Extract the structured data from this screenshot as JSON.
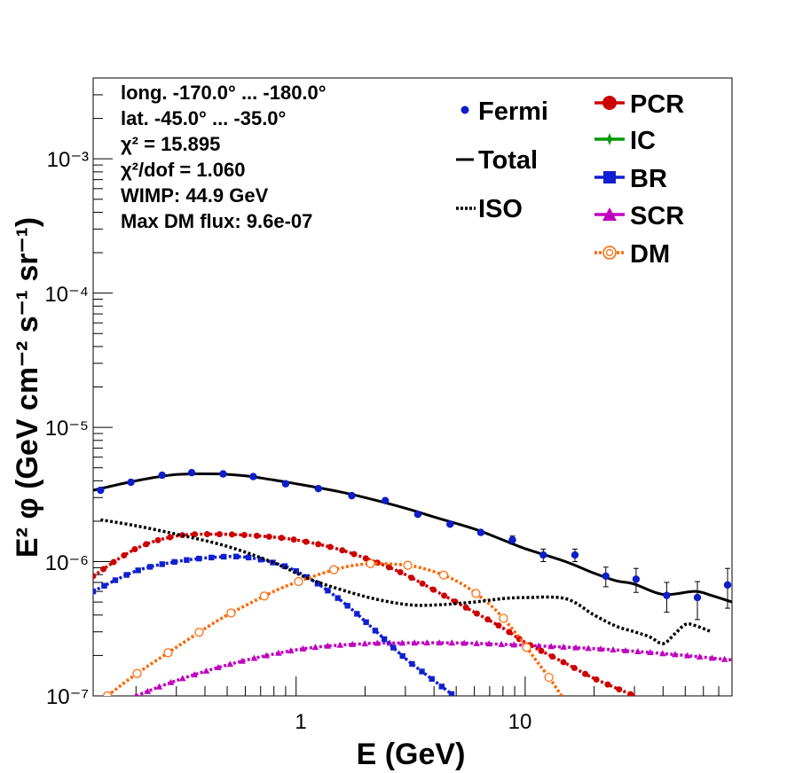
{
  "chart_data": {
    "type": "line",
    "xlabel": "E (GeV)",
    "ylabel": "E² φ (GeV cm⁻² s⁻¹ sr⁻¹)",
    "xscale": "log",
    "yscale": "log",
    "xlim": [
      0.13,
      80
    ],
    "ylim": [
      1e-07,
      0.004
    ],
    "x_tick_labels": [
      "1",
      "10"
    ],
    "y_tick_labels": [
      "10⁻⁷",
      "10⁻⁶",
      "10⁻⁵",
      "10⁻⁴",
      "10⁻³"
    ],
    "legend_placement": "top-right",
    "annotations": [
      "long. -170.0° ... -180.0°",
      "lat. -45.0° ... -35.0°",
      "χ² = 15.895",
      "χ²/dof = 1.060",
      "WIMP: 44.9 GeV",
      "Max DM flux: 9.6e-07"
    ],
    "series": [
      {
        "name": "Fermi",
        "color": "#0d1dc8",
        "style": "points",
        "x": [
          0.14,
          0.19,
          0.26,
          0.35,
          0.48,
          0.65,
          0.9,
          1.25,
          1.75,
          2.45,
          3.4,
          4.7,
          6.4,
          8.8,
          12.0,
          16.5,
          22.5,
          30.5,
          41.5,
          56.5,
          76.5
        ],
        "y": [
          3.4e-06,
          3.9e-06,
          4.4e-06,
          4.6e-06,
          4.5e-06,
          4.3e-06,
          3.8e-06,
          3.5e-06,
          3.1e-06,
          2.85e-06,
          2.25e-06,
          1.9e-06,
          1.65e-06,
          1.45e-06,
          1.12e-06,
          1.12e-06,
          7.8e-07,
          7.4e-07,
          5.6e-07,
          5.4e-07,
          6.7e-07
        ],
        "err": [
          0,
          0,
          0,
          0,
          0,
          0,
          0,
          0,
          0,
          0,
          0,
          0,
          0,
          1e-07,
          1.2e-07,
          1.2e-07,
          1.3e-07,
          1.5e-07,
          1.4e-07,
          1.7e-07,
          2.2e-07
        ]
      },
      {
        "name": "Total",
        "color": "#000000",
        "style": "solid",
        "x": [
          0.13,
          0.2,
          0.3,
          0.45,
          0.6,
          0.8,
          1.0,
          1.5,
          2.0,
          3.0,
          4.0,
          6.0,
          8.0,
          10.0,
          15.0,
          20.0,
          25.0,
          30.0,
          40.0,
          55.0,
          65.0,
          80.0
        ],
        "y": [
          3.4e-06,
          4e-06,
          4.45e-06,
          4.5e-06,
          4.35e-06,
          4.05e-06,
          3.8e-06,
          3.35e-06,
          3e-06,
          2.5e-06,
          2.15e-06,
          1.75e-06,
          1.45e-06,
          1.25e-06,
          1e-06,
          8.2e-07,
          7.2e-07,
          6.8e-07,
          5.7e-07,
          6e-07,
          5.6e-07,
          5e-07
        ]
      },
      {
        "name": "ISO",
        "color": "#000000",
        "style": "dotted",
        "x": [
          0.14,
          0.2,
          0.3,
          0.5,
          0.8,
          1.2,
          2.0,
          3.0,
          4.0,
          6.0,
          8.0,
          10.0,
          15.0,
          20.0,
          25.0,
          30.0,
          35.0,
          40.0,
          45.0,
          50.0,
          55.0,
          65.0
        ],
        "y": [
          2.05e-06,
          1.85e-06,
          1.6e-06,
          1.3e-06,
          9.8e-07,
          7.2e-07,
          5.5e-07,
          4.8e-07,
          4.75e-07,
          5e-07,
          5.3e-07,
          5.4e-07,
          5.3e-07,
          4e-07,
          3.3e-07,
          3e-07,
          2.75e-07,
          2.45e-07,
          2.9e-07,
          3.4e-07,
          3.35e-07,
          3e-07
        ]
      },
      {
        "name": "PCR",
        "color": "#cc0000",
        "style": "dotted-markers",
        "x": [
          0.13,
          0.2,
          0.3,
          0.45,
          0.7,
          1.0,
          1.5,
          2.2,
          3.0,
          4.5,
          6.0,
          8.0,
          10.0,
          15.0,
          20.0,
          30.0,
          40.0
        ],
        "y": [
          7.8e-07,
          1.25e-06,
          1.55e-06,
          1.6e-06,
          1.55e-06,
          1.45e-06,
          1.25e-06,
          1e-06,
          8e-07,
          5.5e-07,
          4.2e-07,
          3.2e-07,
          2.5e-07,
          1.75e-07,
          1.35e-07,
          1e-07,
          8e-08
        ]
      },
      {
        "name": "IC",
        "color": "#009a00",
        "style": "dotted-markers",
        "x": [],
        "y": []
      },
      {
        "name": "BR",
        "color": "#1020d0",
        "style": "dotted-markers",
        "x": [
          0.13,
          0.2,
          0.3,
          0.45,
          0.6,
          0.8,
          1.0,
          1.3,
          1.7,
          2.2,
          3.0,
          4.0,
          5.3
        ],
        "y": [
          6e-07,
          8.5e-07,
          1e-06,
          1.08e-06,
          1.08e-06,
          9.8e-07,
          8.5e-07,
          6.5e-07,
          4.6e-07,
          3.1e-07,
          1.9e-07,
          1.3e-07,
          9e-08
        ]
      },
      {
        "name": "SCR",
        "color": "#c000c0",
        "style": "dotted-markers",
        "x": [
          0.2,
          0.3,
          0.5,
          0.8,
          1.2,
          2.0,
          3.0,
          5.0,
          8.0,
          12.0,
          20.0,
          30.0,
          50.0,
          80.0
        ],
        "y": [
          1e-07,
          1.3e-07,
          1.7e-07,
          2.05e-07,
          2.3e-07,
          2.45e-07,
          2.48e-07,
          2.48e-07,
          2.42e-07,
          2.35e-07,
          2.25e-07,
          2.15e-07,
          2e-07,
          1.85e-07
        ]
      },
      {
        "name": "DM",
        "color": "#ff6600",
        "style": "dotted-markers",
        "x": [
          0.15,
          0.2,
          0.3,
          0.45,
          0.6,
          0.8,
          1.0,
          1.5,
          2.0,
          2.6,
          3.5,
          5.0,
          7.0,
          9.0,
          11.0,
          13.0,
          15.0
        ],
        "y": [
          1e-07,
          1.45e-07,
          2.3e-07,
          3.6e-07,
          4.7e-07,
          6e-07,
          7e-07,
          8.8e-07,
          9.6e-07,
          9.6e-07,
          9e-07,
          7.2e-07,
          4.8e-07,
          3e-07,
          1.9e-07,
          1.3e-07,
          9e-08
        ]
      }
    ]
  }
}
